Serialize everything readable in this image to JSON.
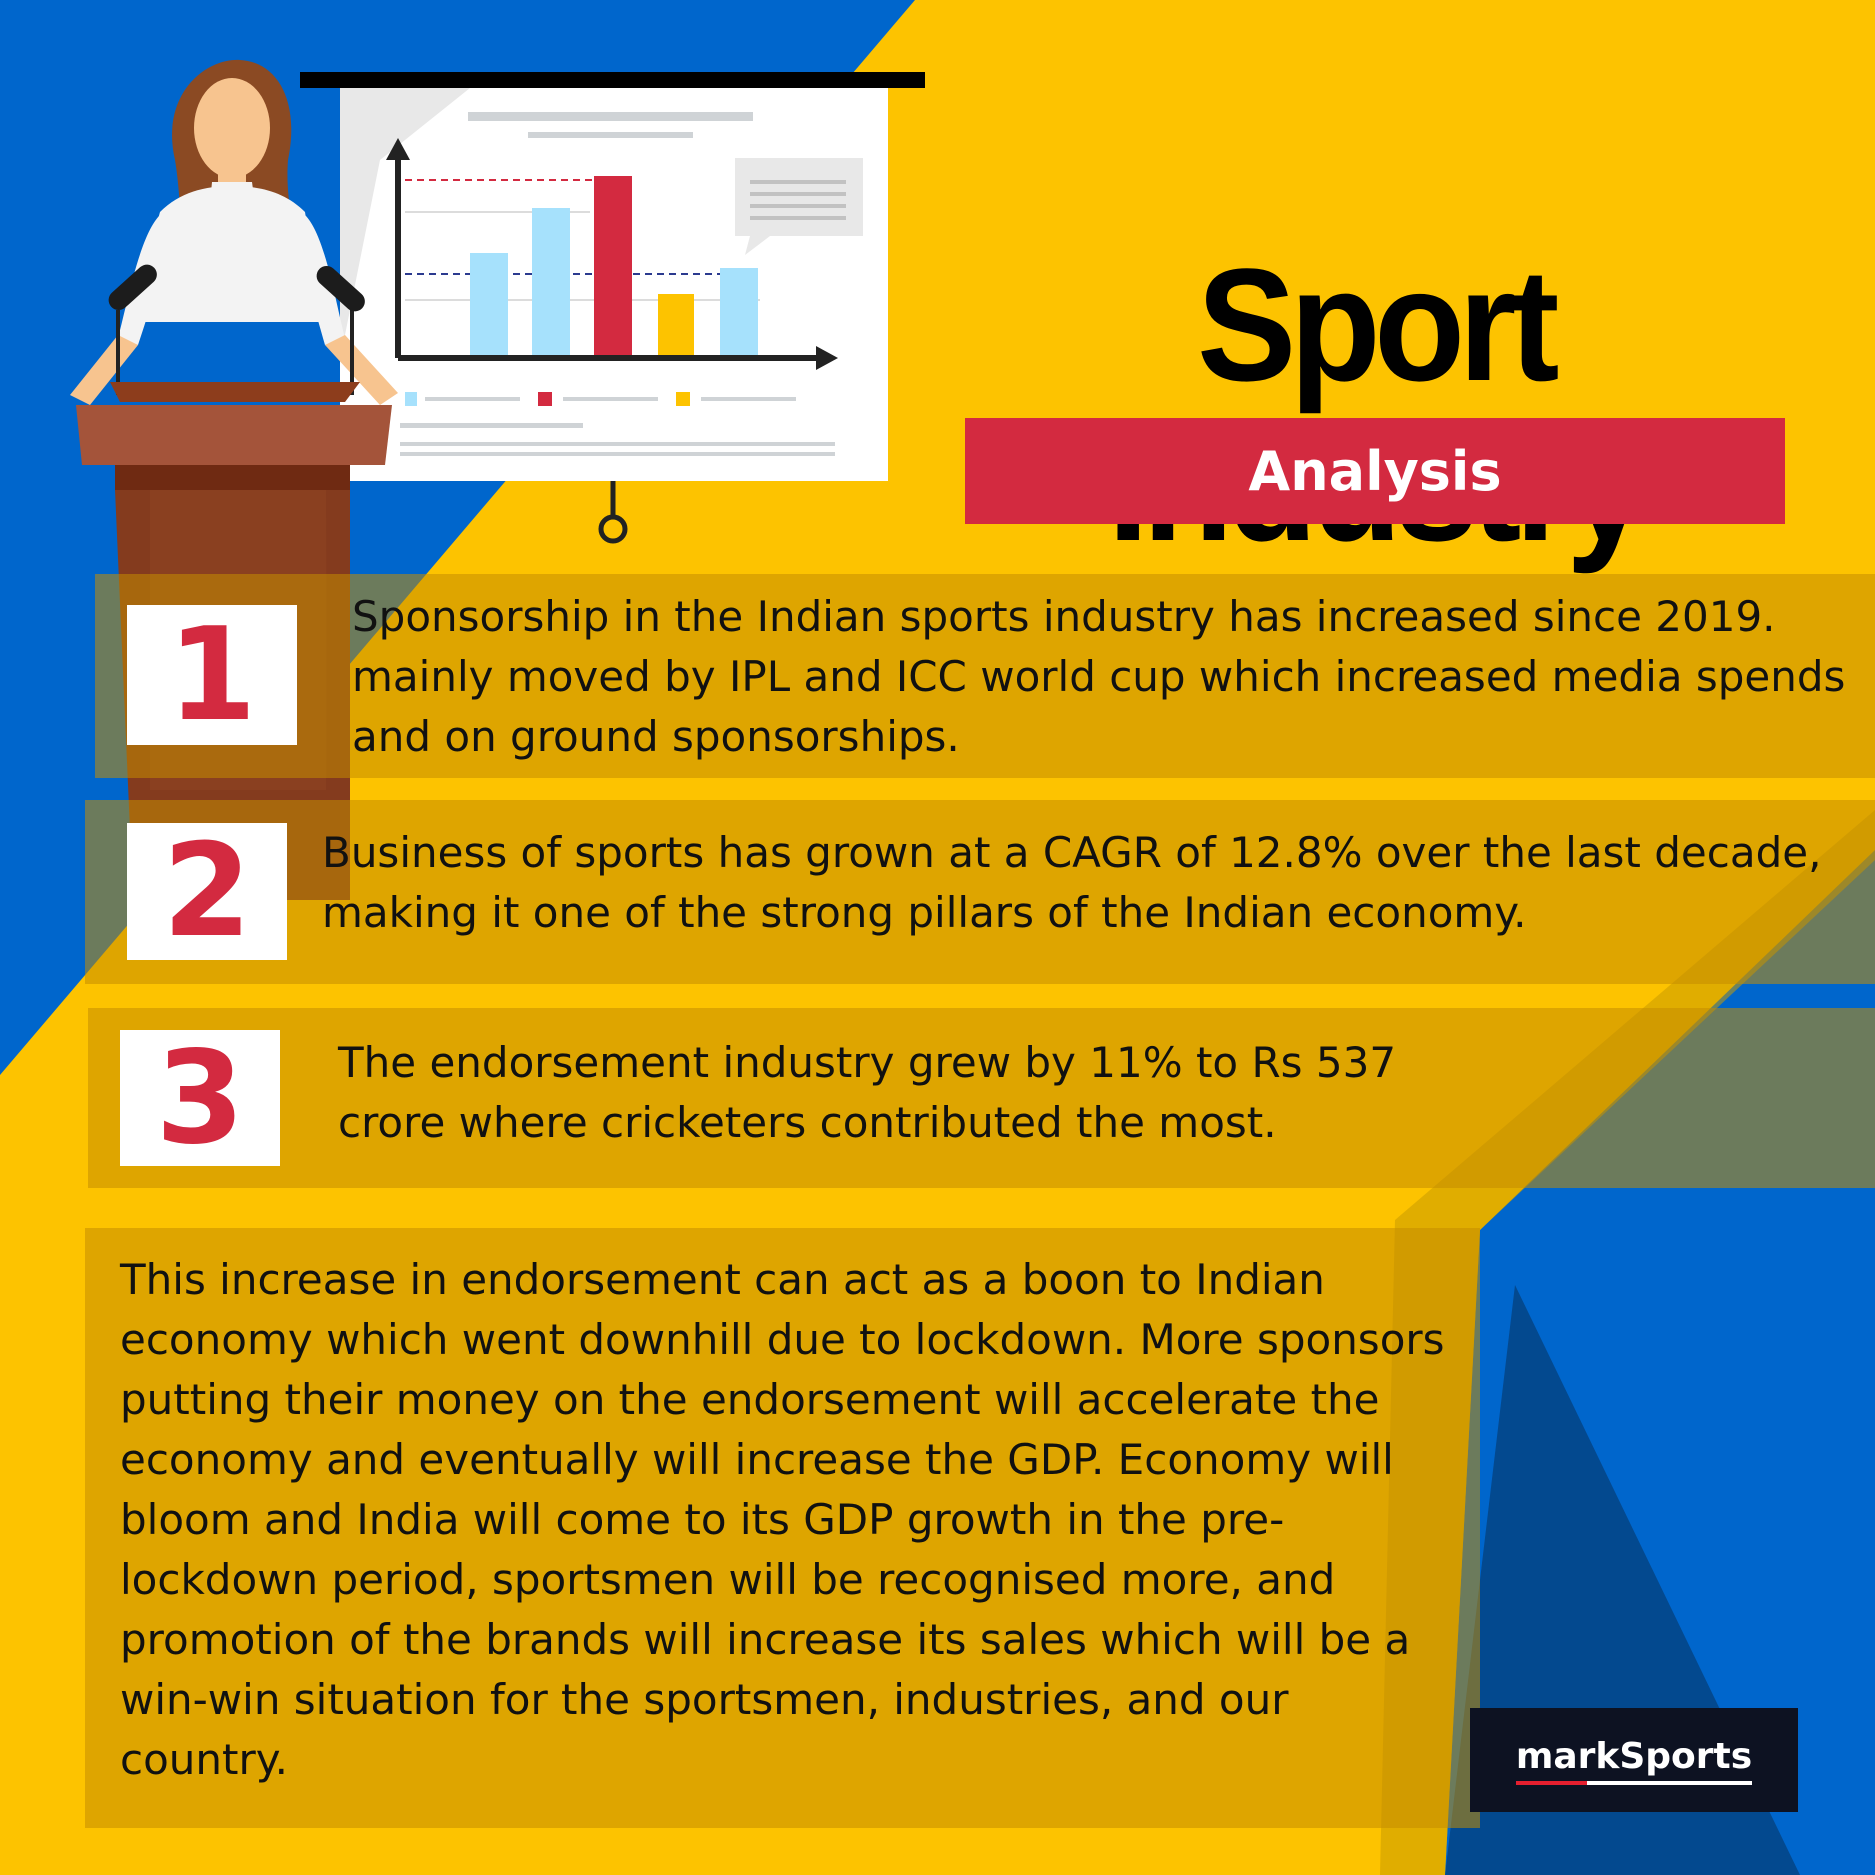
{
  "header": {
    "title": "Sport Industry",
    "subtitle": "Analysis"
  },
  "points": [
    {
      "number": "1",
      "text": "Sponsorship in the Indian sports industry has increased since 2019. mainly moved by IPL and ICC world cup which increased media spends and on ground sponsorships."
    },
    {
      "number": "2",
      "text": " Business of sports has grown at a CAGR of 12.8% over the last decade, making it one of the strong pillars of the Indian economy."
    },
    {
      "number": "3",
      "text": "The endorsement industry grew by 11% to Rs 537 crore where cricketers contributed the most."
    }
  ],
  "conclusion": "This increase in endorsement can act as a boon to Indian economy which went downhill due to lockdown. More sponsors putting their money on the endorsement will accelerate the economy and eventually will increase the GDP. Economy will bloom and India will come to its GDP growth in the pre-lockdown period, sportsmen will be recognised more, and promotion of the brands will increase its sales which will be a win-win situation for the sportsmen, industries, and our country.",
  "brand": "markSports",
  "colors": {
    "background_yellow": "#fdc300",
    "background_blue": "#0066cc",
    "accent_red": "#d32a40",
    "brand_dark": "#0d1222"
  },
  "illustration": {
    "presenter": "woman-presenter-at-podium",
    "board_chart_bar_colors": [
      "#a6e1fc",
      "#a6e1fc",
      "#d32a40",
      "#fdc300",
      "#a6e1fc"
    ]
  }
}
